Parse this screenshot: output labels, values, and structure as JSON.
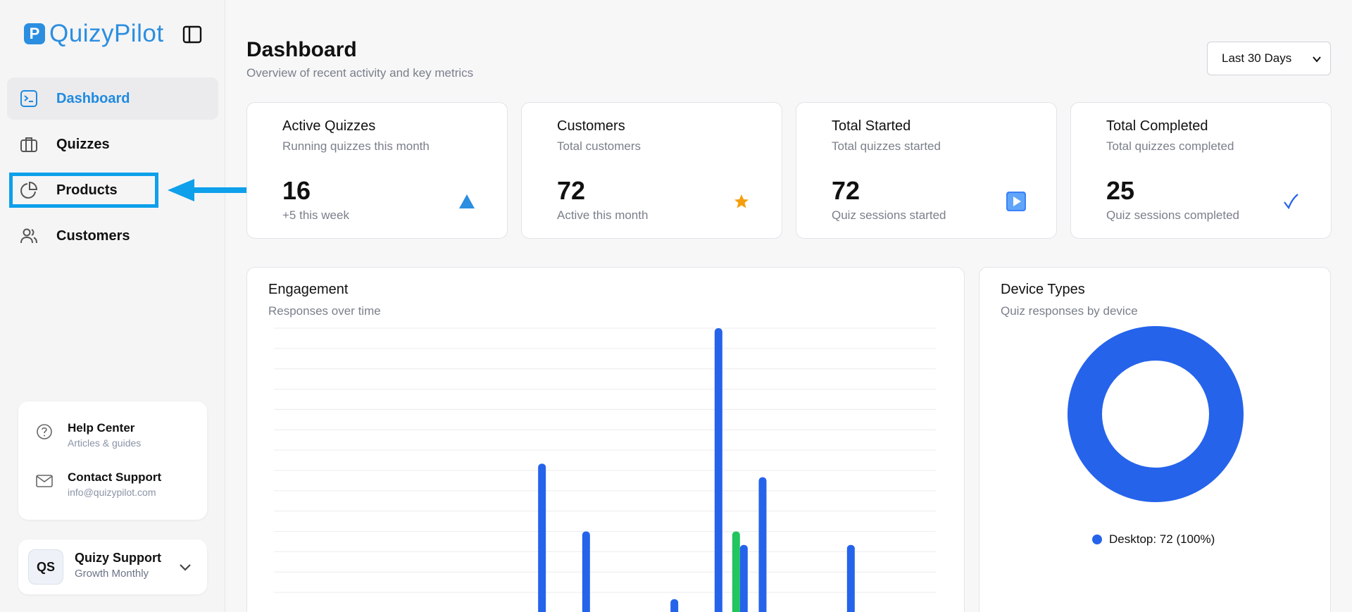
{
  "app": {
    "logo_letter": "P",
    "logo_text": "QuizyPilot"
  },
  "sidebar": {
    "items": [
      {
        "label": "Dashboard",
        "icon": "terminal-square-icon",
        "active": true
      },
      {
        "label": "Quizzes",
        "icon": "briefcase-icon"
      },
      {
        "label": "Products",
        "icon": "pie-chart-icon"
      },
      {
        "label": "Customers",
        "icon": "users-icon"
      }
    ],
    "help": {
      "help_center": {
        "title": "Help Center",
        "subtitle": "Articles & guides"
      },
      "contact": {
        "title": "Contact Support",
        "subtitle": "info@quizypilot.com"
      }
    },
    "user": {
      "initials": "QS",
      "name": "Quizy Support",
      "plan": "Growth Monthly"
    }
  },
  "header": {
    "title": "Dashboard",
    "subtitle": "Overview of recent activity and key metrics",
    "range": "Last 30 Days"
  },
  "stats": [
    {
      "title": "Active Quizzes",
      "subtitle": "Running quizzes this month",
      "value": "16",
      "note": "+5 this week",
      "icon": "triangle-up-icon",
      "color": "#2b8ee0"
    },
    {
      "title": "Customers",
      "subtitle": "Total customers",
      "value": "72",
      "note": "Active this month",
      "icon": "star-icon",
      "color": "#f59e0b"
    },
    {
      "title": "Total Started",
      "subtitle": "Total quizzes started",
      "value": "72",
      "note": "Quiz sessions started",
      "icon": "play-icon",
      "color": "#3b82f6"
    },
    {
      "title": "Total Completed",
      "subtitle": "Total quizzes completed",
      "value": "25",
      "note": "Quiz sessions completed",
      "icon": "checkmark-icon",
      "color": "#2563eb"
    }
  ],
  "engagement": {
    "title": "Engagement",
    "subtitle": "Responses over time"
  },
  "devices": {
    "title": "Device Types",
    "subtitle": "Quiz responses by device",
    "legend": "Desktop: 72 (100%)"
  },
  "colors": {
    "accent": "#1f8ae0",
    "bar_blue": "#2563eb",
    "bar_green": "#22c55e",
    "highlight": "#0ea0ea"
  },
  "chart_data": [
    {
      "type": "bar",
      "title": "Engagement",
      "series": [
        {
          "values": [
            0,
            0,
            0,
            0,
            0,
            0,
            0,
            0,
            0,
            0,
            0,
            0,
            11,
            0,
            6,
            0,
            0,
            0,
            1,
            0,
            21,
            0,
            10,
            0,
            0,
            0,
            5,
            0,
            0,
            0
          ]
        },
        {
          "values": [
            0,
            0,
            0,
            0,
            0,
            0,
            0,
            0,
            0,
            0,
            0,
            0,
            0,
            0,
            0,
            0,
            0,
            0,
            0,
            0,
            0,
            6,
            0,
            0,
            0,
            0,
            0,
            0,
            0,
            0
          ]
        },
        {
          "values": [
            0,
            0,
            0,
            0,
            0,
            0,
            0,
            0,
            0,
            0,
            0,
            0,
            0,
            0,
            0,
            0,
            0,
            0,
            0,
            0,
            0,
            5,
            0,
            0,
            0,
            0,
            0,
            0,
            0,
            0
          ]
        }
      ],
      "ylim": [
        0,
        21
      ],
      "grid": true
    },
    {
      "type": "pie",
      "title": "Device Types",
      "labels": [
        "Desktop"
      ],
      "values": [
        72
      ],
      "donut": true
    }
  ]
}
